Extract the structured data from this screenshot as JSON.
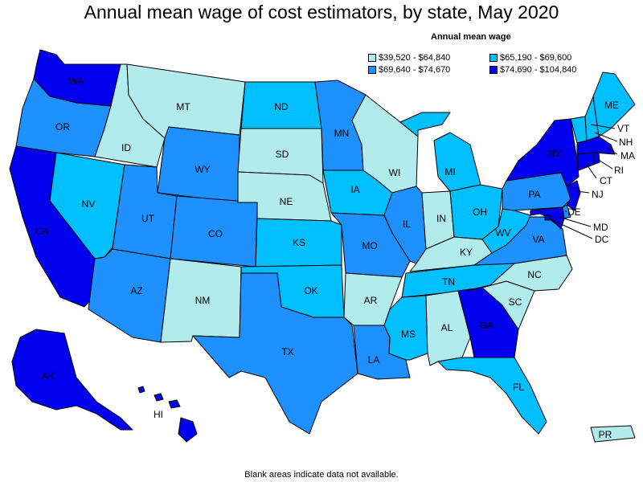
{
  "title": "Annual mean wage of cost estimators, by state, May 2020",
  "legend": {
    "title": "Annual mean wage",
    "items": [
      {
        "label": "$39,520 - $64,840",
        "color": "#b2ebeb"
      },
      {
        "label": "$65,190 - $69,600",
        "color": "#00bfff"
      },
      {
        "label": "$69,640 - $74,670",
        "color": "#1e90ff"
      },
      {
        "label": "$74,690 - $104,840",
        "color": "#0000ee"
      }
    ]
  },
  "note": "Blank areas indicate data not available.",
  "chart_data": {
    "type": "choropleth",
    "title": "Annual mean wage of cost estimators, by state, May 2020",
    "bins": [
      "$39,520 - $64,840",
      "$65,190 - $69,600",
      "$69,640 - $74,670",
      "$74,690 - $104,840"
    ],
    "states": [
      {
        "abbr": "WA",
        "bin": 3
      },
      {
        "abbr": "OR",
        "bin": 2
      },
      {
        "abbr": "CA",
        "bin": 3
      },
      {
        "abbr": "ID",
        "bin": 0
      },
      {
        "abbr": "NV",
        "bin": 1
      },
      {
        "abbr": "MT",
        "bin": 0
      },
      {
        "abbr": "WY",
        "bin": 2
      },
      {
        "abbr": "UT",
        "bin": 2
      },
      {
        "abbr": "AZ",
        "bin": 2
      },
      {
        "abbr": "CO",
        "bin": 2
      },
      {
        "abbr": "NM",
        "bin": 0
      },
      {
        "abbr": "ND",
        "bin": 1
      },
      {
        "abbr": "SD",
        "bin": 0
      },
      {
        "abbr": "NE",
        "bin": 0
      },
      {
        "abbr": "KS",
        "bin": 1
      },
      {
        "abbr": "OK",
        "bin": 1
      },
      {
        "abbr": "TX",
        "bin": 2
      },
      {
        "abbr": "MN",
        "bin": 2
      },
      {
        "abbr": "IA",
        "bin": 1
      },
      {
        "abbr": "MO",
        "bin": 2
      },
      {
        "abbr": "AR",
        "bin": 0
      },
      {
        "abbr": "LA",
        "bin": 2
      },
      {
        "abbr": "WI",
        "bin": 0
      },
      {
        "abbr": "IL",
        "bin": 2
      },
      {
        "abbr": "MI",
        "bin": 1
      },
      {
        "abbr": "IN",
        "bin": 0
      },
      {
        "abbr": "OH",
        "bin": 1
      },
      {
        "abbr": "KY",
        "bin": 0
      },
      {
        "abbr": "TN",
        "bin": 1
      },
      {
        "abbr": "MS",
        "bin": 1
      },
      {
        "abbr": "AL",
        "bin": 0
      },
      {
        "abbr": "GA",
        "bin": 3
      },
      {
        "abbr": "FL",
        "bin": 1
      },
      {
        "abbr": "SC",
        "bin": 0
      },
      {
        "abbr": "NC",
        "bin": 0
      },
      {
        "abbr": "VA",
        "bin": 2
      },
      {
        "abbr": "WV",
        "bin": 1
      },
      {
        "abbr": "PA",
        "bin": 2
      },
      {
        "abbr": "NY",
        "bin": 3
      },
      {
        "abbr": "VT",
        "bin": 1
      },
      {
        "abbr": "NH",
        "bin": 1
      },
      {
        "abbr": "ME",
        "bin": 1
      },
      {
        "abbr": "MA",
        "bin": 3
      },
      {
        "abbr": "RI",
        "bin": 3
      },
      {
        "abbr": "CT",
        "bin": 3
      },
      {
        "abbr": "NJ",
        "bin": 3
      },
      {
        "abbr": "DE",
        "bin": 2
      },
      {
        "abbr": "MD",
        "bin": 3
      },
      {
        "abbr": "DC",
        "bin": 3
      },
      {
        "abbr": "AK",
        "bin": 3
      },
      {
        "abbr": "HI",
        "bin": 3
      },
      {
        "abbr": "PR",
        "bin": 0
      }
    ]
  }
}
